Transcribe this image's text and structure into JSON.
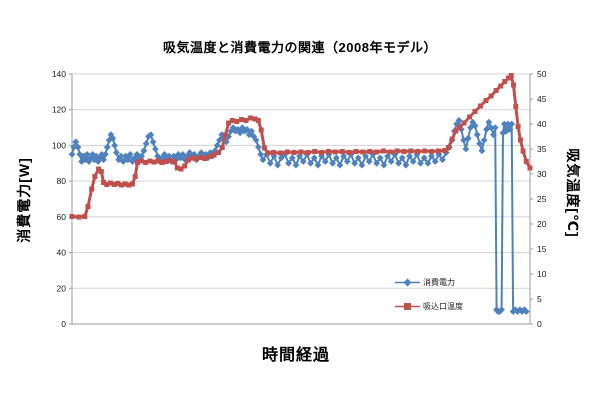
{
  "chart_data": {
    "type": "line",
    "title": "吸気温度と消費電力の関連（2008年モデル）",
    "xlabel": "時間経過",
    "x_axis": {
      "tick_labels": "none",
      "unit": "relative time 0-100"
    },
    "grid": "horizontal",
    "legend_position": "inside-lower-right",
    "background": "#ffffff",
    "colors": {
      "grid": "#d3d3d3",
      "axis": "#9b9b9b",
      "tick_text": "#1a1a1a"
    },
    "y_left": {
      "label": "消費電力[W]",
      "min": 0,
      "max": 140,
      "tick_step": 20,
      "ticks": [
        0,
        20,
        40,
        60,
        80,
        100,
        120,
        140
      ]
    },
    "y_right": {
      "label": "吸気温度[℃]",
      "min": 0,
      "max": 50,
      "tick_step": 5,
      "ticks": [
        0,
        5,
        10,
        15,
        20,
        25,
        30,
        35,
        40,
        45,
        50
      ]
    },
    "series": [
      {
        "name": "消費電力",
        "axis": "left",
        "unit": "W",
        "color": "#4F81BD",
        "marker": "diamond",
        "points": [
          [
            0,
            95
          ],
          [
            0.4,
            99
          ],
          [
            0.8,
            102
          ],
          [
            1.3,
            99
          ],
          [
            1.7,
            95
          ],
          [
            2.1,
            91
          ],
          [
            2.5,
            94
          ],
          [
            2.9,
            92
          ],
          [
            3.3,
            95
          ],
          [
            3.7,
            91
          ],
          [
            4.1,
            93
          ],
          [
            4.5,
            95
          ],
          [
            4.9,
            92
          ],
          [
            5.3,
            94
          ],
          [
            5.7,
            91
          ],
          [
            6.1,
            93
          ],
          [
            6.5,
            95
          ],
          [
            6.9,
            92
          ],
          [
            7.3,
            95
          ],
          [
            7.7,
            99
          ],
          [
            8.1,
            103
          ],
          [
            8.5,
            106
          ],
          [
            8.9,
            104
          ],
          [
            9.3,
            100
          ],
          [
            9.7,
            96
          ],
          [
            10.2,
            92
          ],
          [
            10.7,
            94
          ],
          [
            11.2,
            91
          ],
          [
            11.7,
            94
          ],
          [
            12.2,
            92
          ],
          [
            12.7,
            95
          ],
          [
            13.2,
            91
          ],
          [
            13.7,
            93
          ],
          [
            14.2,
            95
          ],
          [
            14.7,
            92
          ],
          [
            15.2,
            94
          ],
          [
            15.7,
            97
          ],
          [
            16.2,
            101
          ],
          [
            16.7,
            105
          ],
          [
            17.2,
            106
          ],
          [
            17.7,
            102
          ],
          [
            18.2,
            98
          ],
          [
            18.7,
            94
          ],
          [
            19.2,
            91
          ],
          [
            19.7,
            93
          ],
          [
            20.2,
            95
          ],
          [
            20.7,
            92
          ],
          [
            21.2,
            94
          ],
          [
            21.7,
            91
          ],
          [
            22.2,
            94
          ],
          [
            22.7,
            92
          ],
          [
            23.2,
            95
          ],
          [
            23.7,
            93
          ],
          [
            24.2,
            95
          ],
          [
            24.7,
            92
          ],
          [
            25.2,
            94
          ],
          [
            25.7,
            96
          ],
          [
            26.2,
            93
          ],
          [
            26.7,
            95
          ],
          [
            27.2,
            92
          ],
          [
            27.7,
            94
          ],
          [
            28.2,
            96
          ],
          [
            28.7,
            93
          ],
          [
            29.2,
            95
          ],
          [
            29.7,
            93
          ],
          [
            30.2,
            96
          ],
          [
            30.7,
            94
          ],
          [
            31.2,
            97
          ],
          [
            31.7,
            100
          ],
          [
            32.2,
            103
          ],
          [
            32.7,
            106
          ],
          [
            33.2,
            104
          ],
          [
            33.7,
            102
          ],
          [
            34.2,
            105
          ],
          [
            34.7,
            108
          ],
          [
            35.2,
            110
          ],
          [
            35.7,
            108
          ],
          [
            36.2,
            109
          ],
          [
            36.7,
            107
          ],
          [
            37.2,
            110
          ],
          [
            37.7,
            108
          ],
          [
            38.2,
            109
          ],
          [
            38.7,
            106
          ],
          [
            39.2,
            108
          ],
          [
            39.7,
            105
          ],
          [
            40.2,
            103
          ],
          [
            40.7,
            99
          ],
          [
            41.2,
            95
          ],
          [
            41.7,
            92
          ],
          [
            42.5,
            95
          ],
          [
            43.3,
            90
          ],
          [
            44.1,
            94
          ],
          [
            44.9,
            89
          ],
          [
            45.7,
            93
          ],
          [
            46.5,
            95
          ],
          [
            47.3,
            90
          ],
          [
            48.1,
            93
          ],
          [
            48.9,
            89
          ],
          [
            49.7,
            94
          ],
          [
            50.5,
            91
          ],
          [
            51.3,
            95
          ],
          [
            52.1,
            90
          ],
          [
            52.9,
            93
          ],
          [
            53.7,
            89
          ],
          [
            54.5,
            94
          ],
          [
            55.3,
            91
          ],
          [
            56.1,
            95
          ],
          [
            56.9,
            90
          ],
          [
            57.7,
            93
          ],
          [
            58.5,
            89
          ],
          [
            59.3,
            94
          ],
          [
            60.1,
            91
          ],
          [
            60.9,
            95
          ],
          [
            61.7,
            90
          ],
          [
            62.5,
            93
          ],
          [
            63.3,
            89
          ],
          [
            64.1,
            94
          ],
          [
            64.9,
            91
          ],
          [
            65.7,
            95
          ],
          [
            66.5,
            90
          ],
          [
            67.3,
            93
          ],
          [
            68.1,
            89
          ],
          [
            68.9,
            94
          ],
          [
            69.7,
            91
          ],
          [
            70.5,
            95
          ],
          [
            71.3,
            90
          ],
          [
            72.1,
            93
          ],
          [
            72.9,
            89
          ],
          [
            73.7,
            94
          ],
          [
            74.5,
            91
          ],
          [
            75.3,
            95
          ],
          [
            76.1,
            90
          ],
          [
            76.9,
            93
          ],
          [
            77.7,
            90
          ],
          [
            78.5,
            94
          ],
          [
            79.3,
            91
          ],
          [
            80.1,
            95
          ],
          [
            80.9,
            92
          ],
          [
            81.7,
            96
          ],
          [
            82.4,
            99
          ],
          [
            83.0,
            103
          ],
          [
            83.5,
            108
          ],
          [
            84.0,
            112
          ],
          [
            84.5,
            114
          ],
          [
            85.0,
            109
          ],
          [
            85.5,
            103
          ],
          [
            86.0,
            98
          ],
          [
            86.5,
            104
          ],
          [
            87.0,
            110
          ],
          [
            87.5,
            113
          ],
          [
            88.0,
            111
          ],
          [
            88.5,
            106
          ],
          [
            89.0,
            101
          ],
          [
            89.5,
            97
          ],
          [
            90.0,
            103
          ],
          [
            90.5,
            109
          ],
          [
            91.0,
            113
          ],
          [
            91.5,
            110
          ],
          [
            92.0,
            106
          ],
          [
            92.4,
            110
          ],
          [
            92.7,
            8
          ],
          [
            93.0,
            7
          ],
          [
            93.4,
            7
          ],
          [
            93.8,
            8
          ],
          [
            94.1,
            107
          ],
          [
            94.4,
            112
          ],
          [
            94.8,
            108
          ],
          [
            95.2,
            112
          ],
          [
            95.6,
            109
          ],
          [
            96.0,
            112
          ],
          [
            96.3,
            7
          ],
          [
            96.8,
            8
          ],
          [
            97.3,
            7
          ],
          [
            97.8,
            8
          ],
          [
            98.3,
            7
          ],
          [
            98.8,
            8
          ],
          [
            99.2,
            7
          ]
        ]
      },
      {
        "name": "吸込口温度",
        "axis": "right",
        "unit": "°C",
        "color": "#C0504D",
        "marker": "square",
        "points": [
          [
            0,
            21.5
          ],
          [
            1.5,
            21.4
          ],
          [
            2.8,
            21.5
          ],
          [
            3.5,
            23.5
          ],
          [
            4.3,
            27
          ],
          [
            5.0,
            29.5
          ],
          [
            5.8,
            31
          ],
          [
            6.4,
            30.5
          ],
          [
            6.9,
            28.3
          ],
          [
            7.6,
            27.9
          ],
          [
            8.4,
            28.2
          ],
          [
            9.2,
            27.9
          ],
          [
            10.0,
            28.1
          ],
          [
            10.8,
            27.8
          ],
          [
            11.6,
            28.0
          ],
          [
            12.4,
            27.8
          ],
          [
            13.2,
            28.0
          ],
          [
            13.8,
            29.5
          ],
          [
            14.3,
            32.3
          ],
          [
            15.2,
            32.6
          ],
          [
            16.1,
            32.3
          ],
          [
            17.0,
            32.6
          ],
          [
            17.9,
            32.4
          ],
          [
            18.8,
            32.6
          ],
          [
            19.7,
            32.3
          ],
          [
            20.6,
            32.5
          ],
          [
            21.5,
            32.7
          ],
          [
            22.4,
            32.4
          ],
          [
            23.0,
            31.2
          ],
          [
            23.8,
            31.0
          ],
          [
            24.6,
            31.6
          ],
          [
            25.4,
            32.8
          ],
          [
            26.2,
            33.2
          ],
          [
            27.1,
            33.0
          ],
          [
            28.0,
            33.3
          ],
          [
            29.0,
            33.1
          ],
          [
            30.0,
            33.5
          ],
          [
            31.0,
            33.8
          ],
          [
            32.0,
            34.3
          ],
          [
            32.8,
            35.3
          ],
          [
            33.5,
            37.8
          ],
          [
            34.2,
            40.2
          ],
          [
            35.0,
            40.7
          ],
          [
            36.0,
            40.5
          ],
          [
            37.0,
            40.9
          ],
          [
            38.0,
            40.7
          ],
          [
            39.0,
            41.2
          ],
          [
            40.0,
            41.0
          ],
          [
            40.7,
            40.7
          ],
          [
            41.3,
            38.8
          ],
          [
            42.0,
            35.2
          ],
          [
            42.8,
            34.2
          ],
          [
            44.0,
            34.3
          ],
          [
            45.5,
            34.2
          ],
          [
            47.0,
            34.4
          ],
          [
            48.5,
            34.3
          ],
          [
            50.0,
            34.4
          ],
          [
            51.5,
            34.3
          ],
          [
            53.0,
            34.5
          ],
          [
            54.5,
            34.3
          ],
          [
            56.0,
            34.5
          ],
          [
            57.5,
            34.4
          ],
          [
            59.0,
            34.5
          ],
          [
            60.5,
            34.3
          ],
          [
            62.0,
            34.5
          ],
          [
            63.5,
            34.4
          ],
          [
            65.0,
            34.5
          ],
          [
            66.5,
            34.4
          ],
          [
            68.0,
            34.6
          ],
          [
            69.5,
            34.4
          ],
          [
            71.0,
            34.6
          ],
          [
            72.5,
            34.5
          ],
          [
            74.0,
            34.6
          ],
          [
            75.5,
            34.5
          ],
          [
            77.0,
            34.6
          ],
          [
            78.5,
            34.5
          ],
          [
            80.0,
            34.6
          ],
          [
            81.4,
            34.7
          ],
          [
            82.2,
            35.3
          ],
          [
            83.0,
            37.0
          ],
          [
            83.8,
            38.6
          ],
          [
            84.6,
            39.3
          ],
          [
            85.6,
            40.2
          ],
          [
            86.8,
            41.4
          ],
          [
            88.0,
            42.5
          ],
          [
            89.2,
            43.6
          ],
          [
            90.4,
            44.7
          ],
          [
            91.5,
            45.6
          ],
          [
            92.6,
            46.7
          ],
          [
            93.6,
            47.6
          ],
          [
            94.5,
            48.5
          ],
          [
            95.3,
            49.2
          ],
          [
            95.9,
            49.7
          ],
          [
            96.4,
            47.8
          ],
          [
            96.9,
            43.5
          ],
          [
            97.4,
            39.5
          ],
          [
            97.9,
            36.8
          ],
          [
            98.5,
            34.6
          ],
          [
            99.2,
            32.5
          ],
          [
            100,
            31.2
          ]
        ]
      }
    ]
  }
}
